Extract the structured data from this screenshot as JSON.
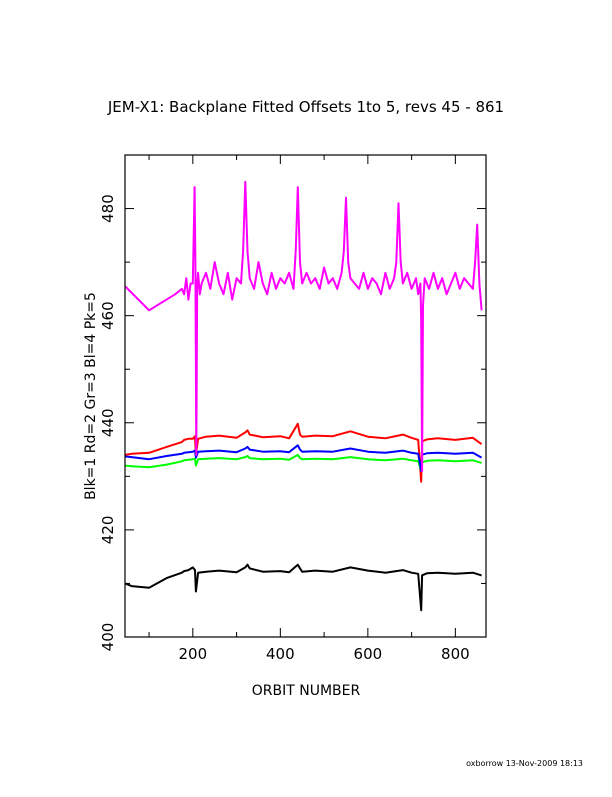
{
  "chart_data": {
    "type": "line",
    "title": "JEM-X1: Backplane Fitted Offsets 1to 5, revs 45 - 861",
    "xlabel": "ORBIT NUMBER",
    "ylabel": "Blk=1 Rd=2 Gr=3 Bl=4 Pk=5",
    "xlim": [
      45,
      870
    ],
    "ylim": [
      400,
      490
    ],
    "xticks": [
      200,
      400,
      600,
      800
    ],
    "yticks": [
      400,
      420,
      440,
      460,
      480
    ],
    "grid": false,
    "series": [
      {
        "name": "Blk=1",
        "color": "#000000",
        "x": [
          45,
          60,
          100,
          140,
          175,
          180,
          190,
          200,
          205,
          207,
          212,
          230,
          260,
          300,
          320,
          325,
          330,
          360,
          400,
          420,
          440,
          445,
          450,
          480,
          520,
          560,
          600,
          640,
          680,
          700,
          715,
          722,
          724,
          726,
          735,
          760,
          800,
          840,
          860
        ],
        "y": [
          410,
          409.5,
          409.2,
          411,
          412,
          412.3,
          412.5,
          413,
          412.5,
          408.5,
          412,
          412.2,
          412.4,
          412.1,
          413,
          413.5,
          412.8,
          412.2,
          412.3,
          412.1,
          413.5,
          412.8,
          412.2,
          412.4,
          412.2,
          413,
          412.4,
          412,
          412.5,
          412,
          411.8,
          405,
          411.5,
          411.6,
          411.9,
          412,
          411.8,
          412,
          411.5
        ]
      },
      {
        "name": "Rd=2",
        "color": "#ff0000",
        "x": [
          45,
          60,
          100,
          140,
          175,
          180,
          190,
          200,
          205,
          207,
          212,
          230,
          260,
          300,
          320,
          325,
          330,
          360,
          400,
          420,
          440,
          445,
          450,
          480,
          520,
          560,
          600,
          640,
          680,
          700,
          715,
          722,
          724,
          726,
          735,
          760,
          800,
          840,
          860
        ],
        "y": [
          434,
          434.2,
          434.4,
          435.5,
          436.4,
          436.8,
          437,
          437,
          437.5,
          434,
          437,
          437.4,
          437.6,
          437.2,
          438.2,
          438.6,
          437.8,
          437.3,
          437.5,
          437.1,
          439.8,
          437.8,
          437.4,
          437.6,
          437.5,
          438.4,
          437.4,
          437.1,
          437.8,
          437.2,
          436.8,
          429,
          436.5,
          436.6,
          436.9,
          437.1,
          436.8,
          437.2,
          436
        ]
      },
      {
        "name": "Gr=3",
        "color": "#00ff00",
        "x": [
          45,
          60,
          100,
          140,
          175,
          180,
          190,
          200,
          205,
          207,
          212,
          230,
          260,
          300,
          320,
          325,
          330,
          360,
          400,
          420,
          440,
          445,
          450,
          480,
          520,
          560,
          600,
          640,
          680,
          700,
          715,
          722,
          724,
          726,
          735,
          760,
          800,
          840,
          860
        ],
        "y": [
          432,
          431.9,
          431.7,
          432.2,
          432.8,
          433,
          433.1,
          433.2,
          433.3,
          432,
          433.2,
          433.3,
          433.4,
          433.2,
          433.6,
          433.8,
          433.4,
          433.2,
          433.3,
          433.1,
          434,
          433.4,
          433.2,
          433.3,
          433.2,
          433.6,
          433.2,
          433,
          433.3,
          433,
          432.8,
          431,
          432.6,
          432.7,
          432.9,
          433,
          432.8,
          433,
          432.5
        ]
      },
      {
        "name": "Bl=4",
        "color": "#0000ff",
        "x": [
          45,
          60,
          100,
          140,
          175,
          180,
          190,
          200,
          205,
          207,
          212,
          230,
          260,
          300,
          320,
          325,
          330,
          360,
          400,
          420,
          440,
          445,
          450,
          480,
          520,
          560,
          600,
          640,
          680,
          700,
          715,
          722,
          724,
          726,
          735,
          760,
          800,
          840,
          860
        ],
        "y": [
          433.7,
          433.6,
          433.2,
          433.8,
          434.2,
          434.4,
          434.5,
          434.6,
          434.8,
          433.5,
          434.6,
          434.7,
          434.8,
          434.5,
          435.2,
          435.5,
          435,
          434.6,
          434.7,
          434.5,
          435.8,
          435,
          434.6,
          434.7,
          434.6,
          435.2,
          434.6,
          434.4,
          434.8,
          434.4,
          434.2,
          431,
          434,
          434.1,
          434.3,
          434.4,
          434.2,
          434.4,
          433.5
        ]
      },
      {
        "name": "Pk=5",
        "color": "#ff00ff",
        "x": [
          45,
          100,
          160,
          175,
          180,
          185,
          190,
          195,
          200,
          204,
          206,
          208,
          210,
          212,
          216,
          220,
          230,
          240,
          250,
          260,
          270,
          280,
          290,
          300,
          310,
          315,
          320,
          325,
          330,
          340,
          350,
          360,
          370,
          380,
          390,
          400,
          410,
          420,
          430,
          435,
          440,
          445,
          450,
          460,
          470,
          480,
          490,
          500,
          510,
          520,
          530,
          540,
          545,
          550,
          555,
          560,
          570,
          580,
          590,
          600,
          610,
          620,
          630,
          640,
          650,
          660,
          665,
          670,
          675,
          680,
          690,
          700,
          710,
          715,
          720,
          722,
          724,
          726,
          730,
          740,
          750,
          760,
          770,
          780,
          790,
          800,
          810,
          820,
          830,
          840,
          845,
          850,
          855,
          860
        ],
        "y": [
          465.5,
          461,
          464,
          465,
          464,
          467,
          463,
          466,
          466,
          484,
          470,
          434,
          466,
          468,
          464,
          466,
          468,
          465,
          470,
          466,
          464,
          468,
          463,
          467,
          466,
          472,
          485,
          472,
          467,
          465,
          470,
          466,
          464,
          468,
          465,
          467,
          466,
          468,
          465,
          472,
          484,
          470,
          466,
          468,
          466,
          467,
          465,
          469,
          466,
          467,
          465,
          468,
          472,
          482,
          470,
          467,
          466,
          465,
          468,
          465,
          467,
          466,
          464,
          468,
          465,
          467,
          470,
          481,
          470,
          466,
          468,
          465,
          467,
          464,
          466,
          459,
          431,
          462,
          467,
          465,
          468,
          465,
          467,
          464,
          466,
          468,
          465,
          467,
          466,
          465,
          470,
          477,
          466,
          461
        ]
      }
    ]
  },
  "footer": "oxborrow 13-Nov-2009 18:13"
}
